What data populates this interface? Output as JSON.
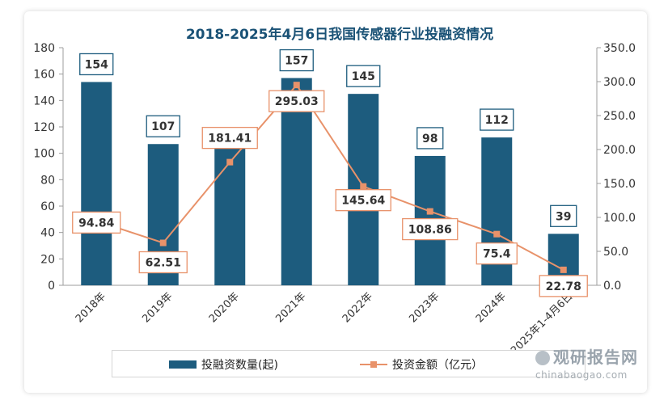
{
  "chart_data": {
    "type": "bar",
    "title": "2018-2025年4月6日我国传感器行业投融资情况",
    "categories": [
      "2018年",
      "2019年",
      "2020年",
      "2021年",
      "2022年",
      "2023年",
      "2024年",
      "2025年1-4月6日"
    ],
    "series": [
      {
        "name": "投融资数量(起)",
        "type": "bar",
        "axis": "left",
        "values": [
          154,
          107,
          113,
          157,
          145,
          98,
          112,
          39
        ]
      },
      {
        "name": "投资金额（亿元）",
        "type": "line",
        "axis": "right",
        "values": [
          94.84,
          62.51,
          181.41,
          295.03,
          145.64,
          108.86,
          75.4,
          22.78
        ]
      }
    ],
    "bar_labels": [
      "154",
      "107",
      "",
      "157",
      "145",
      "98",
      "112",
      "39"
    ],
    "line_labels": [
      "94.84",
      "62.51",
      "181.41",
      "295.03",
      "145.64",
      "108.86",
      "75.4",
      "22.78"
    ],
    "y_left": {
      "range": [
        0,
        180
      ],
      "ticks": [
        "0",
        "20",
        "40",
        "60",
        "80",
        "100",
        "120",
        "140",
        "160",
        "180"
      ]
    },
    "y_right": {
      "range": [
        0,
        350
      ],
      "ticks": [
        "0.0",
        "50.0",
        "100.0",
        "150.0",
        "200.0",
        "250.0",
        "300.0",
        "350.0"
      ]
    },
    "grid": false,
    "legend_position": "bottom",
    "colors": {
      "bar": "#1d5c7e",
      "line": "#e8926a",
      "title": "#1a5276"
    }
  },
  "watermark": {
    "main": "观研报告网",
    "sub": "chinabaogao.com"
  }
}
